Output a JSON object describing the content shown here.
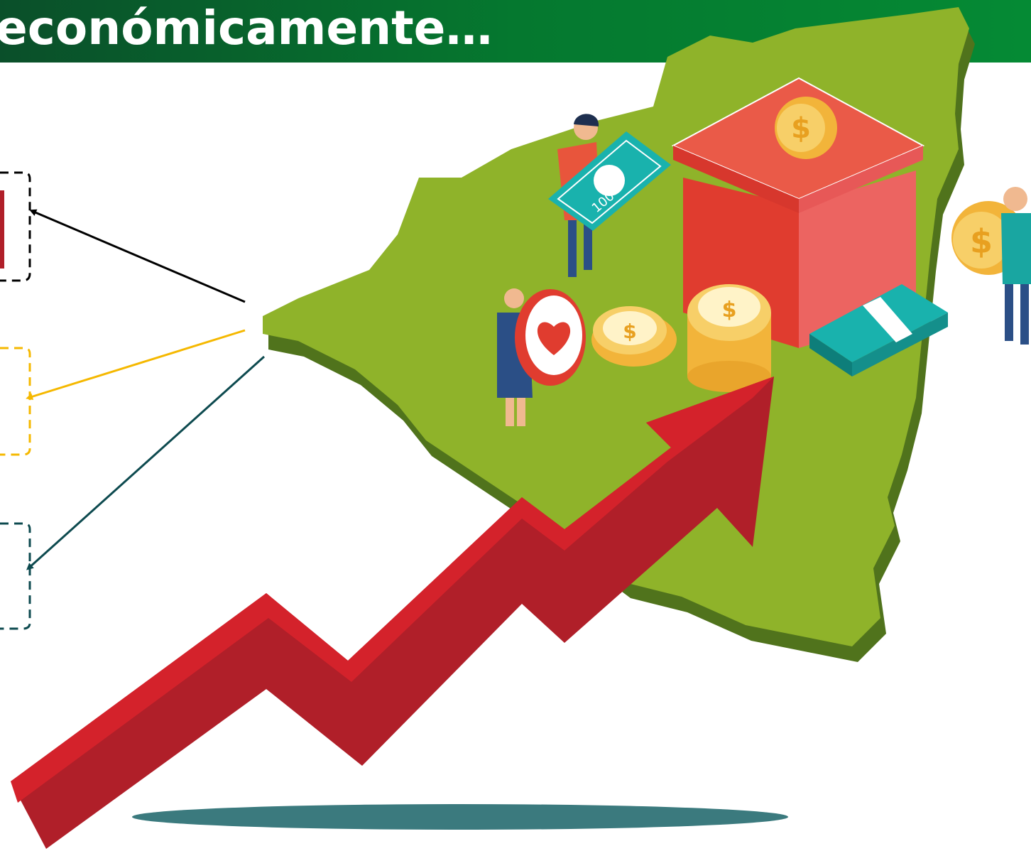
{
  "header": {
    "title": "económicamente…"
  },
  "illustration": {
    "bill_label": "100"
  }
}
